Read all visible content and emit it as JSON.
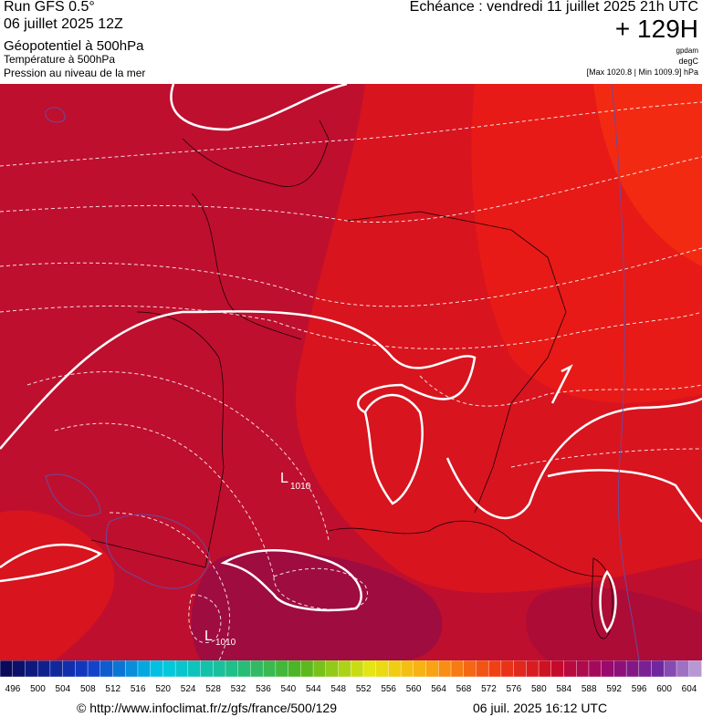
{
  "header": {
    "run": "Run GFS 0.5°",
    "date": "06 juillet 2025 12Z",
    "fields": [
      "Géopotentiel à 500hPa",
      "Température à 500hPa",
      "Pression au niveau de la mer"
    ],
    "forecast": "Echéance : vendredi 11 juillet 2025 21h UTC",
    "lead": "+ 129H",
    "units": [
      "gpdam",
      "degC"
    ],
    "range": "[Max 1020.8 | Min 1009.9] hPa"
  },
  "map": {
    "lows": [
      {
        "symbol": "L",
        "value": "1010"
      },
      {
        "symbol": "L",
        "value": "1010"
      }
    ]
  },
  "legend": {
    "ticks": [
      496,
      500,
      504,
      508,
      512,
      516,
      520,
      524,
      528,
      532,
      536,
      540,
      544,
      548,
      552,
      556,
      560,
      564,
      568,
      572,
      576,
      580,
      584,
      588,
      592,
      596,
      600,
      604
    ]
  },
  "footer": {
    "source": "© http://www.infoclimat.fr/z/gfs/france/500/129",
    "timestamp": "06 juil. 2025 16:12 UTC"
  }
}
